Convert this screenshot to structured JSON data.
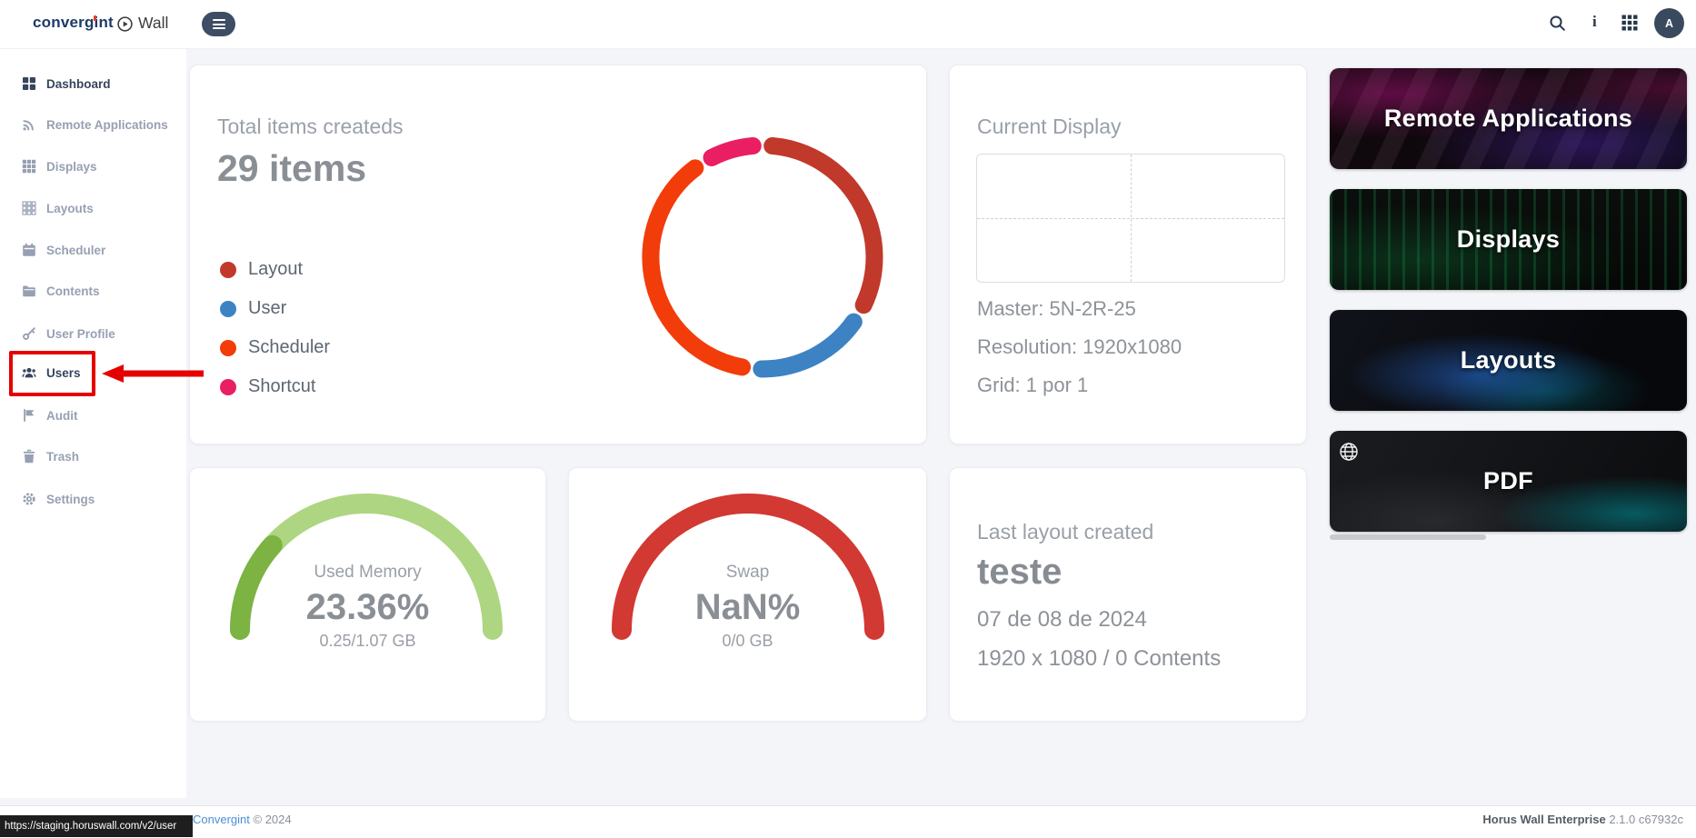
{
  "topbar": {
    "logo_text": "convergint",
    "product_name": "Wall",
    "avatar_initial": "A"
  },
  "sidebar": {
    "items": [
      {
        "label": "Dashboard",
        "icon": "dashboard-grid-icon",
        "active": true
      },
      {
        "label": "Remote Applications",
        "icon": "signal-icon",
        "active": false
      },
      {
        "label": "Displays",
        "icon": "grid-3x3-icon",
        "active": false
      },
      {
        "label": "Layouts",
        "icon": "layout-grid-icon",
        "active": false
      },
      {
        "label": "Scheduler",
        "icon": "calendar-icon",
        "active": false
      },
      {
        "label": "Contents",
        "icon": "folder-icon",
        "active": false
      },
      {
        "label": "User Profile",
        "icon": "key-icon",
        "active": false
      },
      {
        "label": "Users",
        "icon": "users-icon",
        "active": false,
        "highlighted": true
      },
      {
        "label": "Audit",
        "icon": "flag-icon",
        "active": false
      },
      {
        "label": "Trash",
        "icon": "trash-icon",
        "active": false
      },
      {
        "label": "Settings",
        "icon": "gear-icon",
        "active": false
      }
    ]
  },
  "cards": {
    "total_items": {
      "title": "Total items createds",
      "value": "29 items"
    },
    "current_display": {
      "title": "Current Display",
      "master": "Master: 5N-2R-25",
      "resolution": "Resolution: 1920x1080",
      "grid": "Grid: 1 por 1"
    },
    "last_layout": {
      "title": "Last layout created",
      "name": "teste",
      "date": "07 de 08 de 2024",
      "meta": "1920 x 1080  /  0 Contents"
    }
  },
  "quick_links": [
    {
      "label": "Remote Applications"
    },
    {
      "label": "Displays"
    },
    {
      "label": "Layouts"
    },
    {
      "label": "PDF"
    }
  ],
  "footer": {
    "copyright_link": "Convergint",
    "copyright_suffix": "© 2024",
    "product": "Horus Wall Enterprise",
    "version": "2.1.0 c67932c",
    "status_url": "https://staging.horuswall.com/v2/user"
  },
  "annotation": {
    "color": "#e60000"
  },
  "chart_data": [
    {
      "type": "pie",
      "variant": "donut",
      "title": "Total items createds",
      "total": 29,
      "total_label": "29 items",
      "legend_position": "left",
      "series": [
        {
          "name": "Layout",
          "value": 10,
          "color": "#c0392b"
        },
        {
          "name": "User",
          "value": 5,
          "color": "#3d83c4"
        },
        {
          "name": "Scheduler",
          "value": 12,
          "color": "#f23c0a"
        },
        {
          "name": "Shortcut",
          "value": 2,
          "color": "#e91e63"
        }
      ]
    },
    {
      "type": "gauge",
      "title": "Used Memory",
      "percent": 23.36,
      "value_label": "23.36%",
      "detail": "0.25/1.07 GB",
      "track_color": "#aed581",
      "active_color": "#7cb342",
      "range": [
        0,
        100
      ]
    },
    {
      "type": "gauge",
      "title": "Swap",
      "percent": 0,
      "value_label": "NaN%",
      "detail": "0/0 GB",
      "track_color": "#d13932",
      "active_color": "#d13932",
      "range": [
        0,
        100
      ]
    }
  ]
}
